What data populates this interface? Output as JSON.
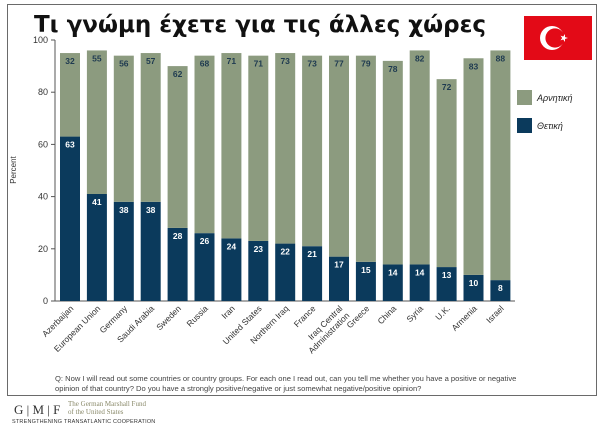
{
  "chart_data": {
    "type": "bar",
    "stacked": true,
    "title": "Τι γνώμη έχετε για τις άλλες χώρες",
    "ylabel": "Percent",
    "xlabel": "",
    "ylim": [
      0,
      100
    ],
    "yticks": [
      "0",
      "20",
      "40",
      "60",
      "80",
      "100"
    ],
    "categories": [
      "Azerbaijan",
      "European Union",
      "Germany",
      "Saudi Arabia",
      "Sweden",
      "Russia",
      "Iran",
      "United States",
      "Northern Iraq",
      "France",
      "Iraq Central Administration",
      "Greece",
      "China",
      "Syria",
      "U.K.",
      "Armenia",
      "Israel"
    ],
    "series": [
      {
        "name": "Θετική",
        "color": "#0b3a5c",
        "values": [
          63,
          41,
          38,
          38,
          28,
          26,
          24,
          23,
          22,
          21,
          17,
          15,
          14,
          14,
          13,
          10,
          8
        ]
      },
      {
        "name": "Αρνητική",
        "color": "#8c9b7f",
        "values": [
          32,
          55,
          56,
          57,
          62,
          68,
          71,
          71,
          73,
          73,
          77,
          79,
          78,
          82,
          72,
          83,
          88
        ]
      }
    ],
    "legend_position": "right"
  },
  "note": "Q: Now I will read out some countries or country groups. For each one I read out, can you tell me whether you have a positive or negative opinion of that country? Do you have a strongly positive/negative or just somewhat negative/positive opinion?",
  "logo": {
    "letters": "G | M | F",
    "name_line1": "The German Marshall Fund",
    "name_line2": "of the United States",
    "tagline": "STRENGTHENING TRANSATLANTIC COOPERATION"
  }
}
